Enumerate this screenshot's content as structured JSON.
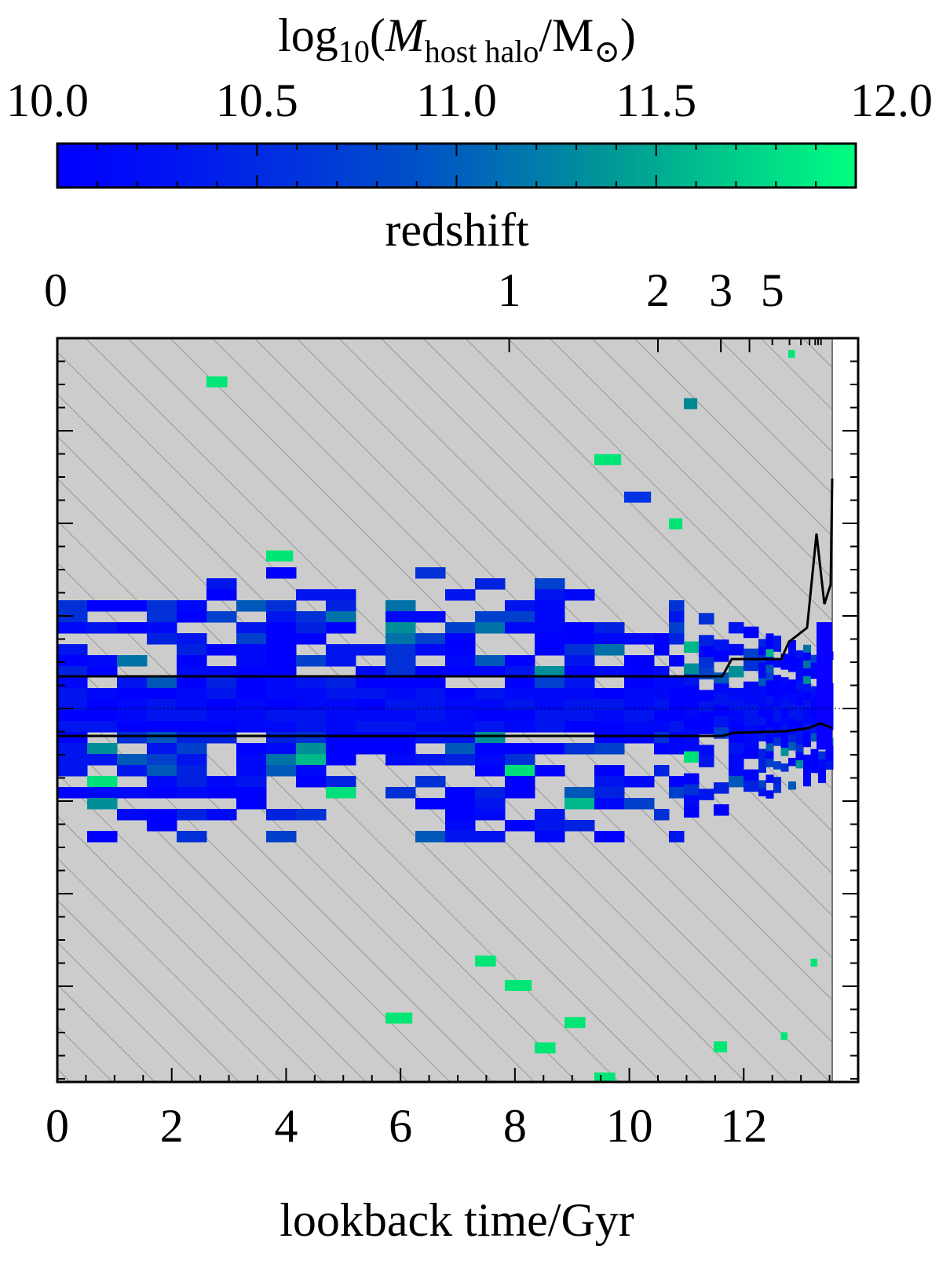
{
  "colorbar": {
    "label_main": "log",
    "label_sub10": "10",
    "label_open": "(",
    "label_M": "M",
    "label_sub_host": "host halo",
    "label_slash": "/M",
    "label_sun": "⊙",
    "label_close": ")",
    "ticks": [
      "10.0",
      "10.5",
      "11.0",
      "11.5",
      "12.0"
    ],
    "range": [
      10.0,
      12.0
    ],
    "color_low": "#0000ff",
    "color_high": "#00ff80"
  },
  "chart_data": {
    "type": "heatmap",
    "xlabel": "lookback time/Gyr",
    "x_ticks": [
      "0",
      "2",
      "4",
      "6",
      "8",
      "10",
      "12"
    ],
    "xlim": [
      0,
      14.0
    ],
    "x_max_data": 13.6,
    "top_axis_label": "redshift",
    "top_ticks": [
      {
        "label": "0",
        "lookback_gyr": 0.0
      },
      {
        "label": "1",
        "lookback_gyr": 7.9
      },
      {
        "label": "2",
        "lookback_gyr": 10.5
      },
      {
        "label": "3",
        "lookback_gyr": 11.6
      },
      {
        "label": "5",
        "lookback_gyr": 12.5
      }
    ],
    "y_tick_labels": "none",
    "background_color": "#cccccc",
    "hatch": true,
    "colors": {
      "blue": "#0000ff",
      "mid_blue": "#0033e6",
      "teal": "#00888f",
      "green": "#00e676",
      "dark_line": "#000000"
    }
  }
}
